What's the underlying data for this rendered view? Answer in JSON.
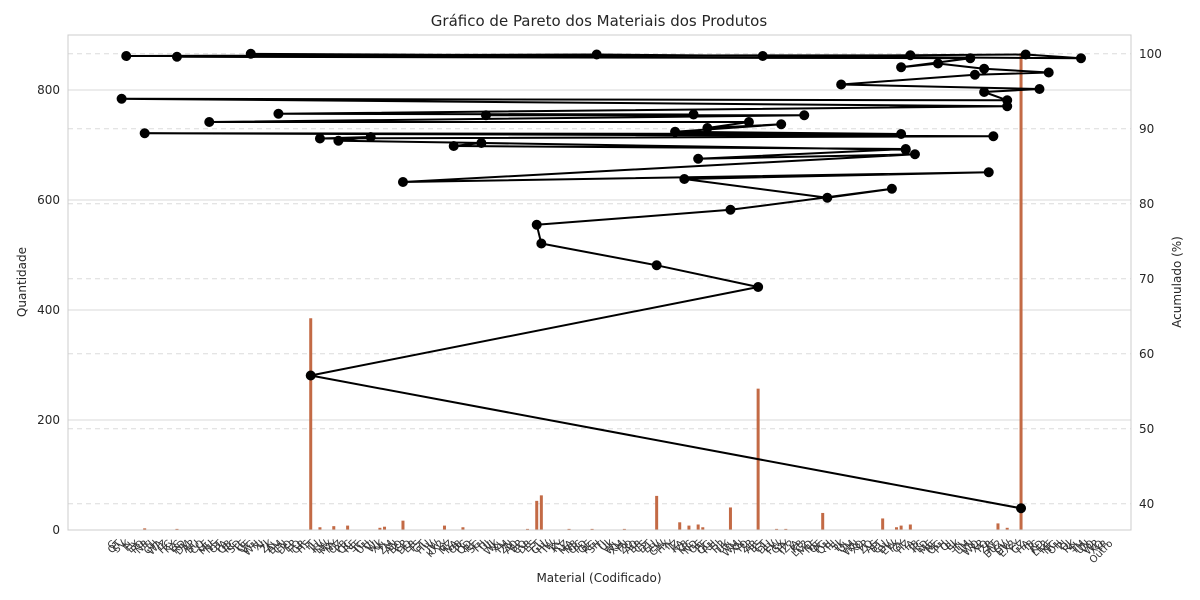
{
  "chart_data": {
    "type": "bar",
    "title": "Gráfico de Pareto dos Materiais dos Produtos",
    "xlabel": "Material (Codificado)",
    "ylabel": "Quantidade",
    "y2label": "Acumulado (%)",
    "ylim": [
      0,
      900
    ],
    "y2lim": [
      36.5,
      102.5
    ],
    "yticks": [
      0,
      200,
      400,
      600,
      800
    ],
    "y2ticks": [
      40,
      50,
      60,
      70,
      80,
      90,
      100
    ],
    "grid": true,
    "n_categories": 210,
    "bar_color": "#c36a45",
    "line_color": "#000000",
    "bars": [
      {
        "i": 6,
        "v": 3
      },
      {
        "i": 13,
        "v": 2
      },
      {
        "i": 42,
        "v": 385
      },
      {
        "i": 44,
        "v": 5
      },
      {
        "i": 47,
        "v": 7
      },
      {
        "i": 50,
        "v": 8
      },
      {
        "i": 57,
        "v": 4
      },
      {
        "i": 58,
        "v": 6
      },
      {
        "i": 62,
        "v": 17
      },
      {
        "i": 71,
        "v": 8
      },
      {
        "i": 75,
        "v": 5
      },
      {
        "i": 89,
        "v": 2
      },
      {
        "i": 91,
        "v": 53
      },
      {
        "i": 92,
        "v": 63
      },
      {
        "i": 98,
        "v": 2
      },
      {
        "i": 103,
        "v": 2
      },
      {
        "i": 110,
        "v": 2
      },
      {
        "i": 117,
        "v": 62
      },
      {
        "i": 122,
        "v": 14
      },
      {
        "i": 124,
        "v": 8
      },
      {
        "i": 126,
        "v": 10
      },
      {
        "i": 127,
        "v": 5
      },
      {
        "i": 133,
        "v": 41
      },
      {
        "i": 139,
        "v": 257
      },
      {
        "i": 143,
        "v": 2
      },
      {
        "i": 145,
        "v": 2
      },
      {
        "i": 153,
        "v": 31
      },
      {
        "i": 166,
        "v": 21
      },
      {
        "i": 169,
        "v": 5
      },
      {
        "i": 170,
        "v": 8
      },
      {
        "i": 172,
        "v": 10
      },
      {
        "i": 191,
        "v": 12
      },
      {
        "i": 193,
        "v": 4
      },
      {
        "i": 196,
        "v": 867
      }
    ],
    "cumulative_points": [
      {
        "i": 196,
        "pct": 39.4
      },
      {
        "i": 42,
        "pct": 57.1
      },
      {
        "i": 139,
        "pct": 68.9
      },
      {
        "i": 117,
        "pct": 71.8
      },
      {
        "i": 92,
        "pct": 74.7
      },
      {
        "i": 91,
        "pct": 77.2
      },
      {
        "i": 133,
        "pct": 79.2
      },
      {
        "i": 168,
        "pct": 82.0
      },
      {
        "i": 154,
        "pct": 80.8
      },
      {
        "i": 123,
        "pct": 83.3
      },
      {
        "i": 189,
        "pct": 84.2
      },
      {
        "i": 62,
        "pct": 82.9
      },
      {
        "i": 173,
        "pct": 86.6
      },
      {
        "i": 126,
        "pct": 86.0
      },
      {
        "i": 171,
        "pct": 87.3
      },
      {
        "i": 73,
        "pct": 87.7
      },
      {
        "i": 79,
        "pct": 88.1
      },
      {
        "i": 171,
        "pct": 87.2
      },
      {
        "i": 48,
        "pct": 88.4
      },
      {
        "i": 55,
        "pct": 88.9
      },
      {
        "i": 44,
        "pct": 88.7
      },
      {
        "i": 190,
        "pct": 89.0
      },
      {
        "i": 6,
        "pct": 89.4
      },
      {
        "i": 170,
        "pct": 89.3
      },
      {
        "i": 121,
        "pct": 89.6
      },
      {
        "i": 144,
        "pct": 90.6
      },
      {
        "i": 128,
        "pct": 90.1
      },
      {
        "i": 137,
        "pct": 90.9
      },
      {
        "i": 20,
        "pct": 90.9
      },
      {
        "i": 149,
        "pct": 91.8
      },
      {
        "i": 80,
        "pct": 91.8
      },
      {
        "i": 125,
        "pct": 91.9
      },
      {
        "i": 35,
        "pct": 92.0
      },
      {
        "i": 193,
        "pct": 93.0
      },
      {
        "i": 1,
        "pct": 94.0
      },
      {
        "i": 193,
        "pct": 93.8
      },
      {
        "i": 188,
        "pct": 94.9
      },
      {
        "i": 200,
        "pct": 95.3
      },
      {
        "i": 157,
        "pct": 95.9
      },
      {
        "i": 186,
        "pct": 97.2
      },
      {
        "i": 202,
        "pct": 97.5
      },
      {
        "i": 188,
        "pct": 98.0
      },
      {
        "i": 178,
        "pct": 98.7
      },
      {
        "i": 170,
        "pct": 98.2
      },
      {
        "i": 185,
        "pct": 99.4
      },
      {
        "i": 13,
        "pct": 99.6
      },
      {
        "i": 140,
        "pct": 99.7
      },
      {
        "i": 104,
        "pct": 99.9
      },
      {
        "i": 2,
        "pct": 99.7
      },
      {
        "i": 172,
        "pct": 99.8
      },
      {
        "i": 197,
        "pct": 99.9
      },
      {
        "i": 209,
        "pct": 99.4
      },
      {
        "i": 29,
        "pct": 100.0
      }
    ],
    "xtick_labels": [
      "G",
      "QT",
      "SV",
      "K",
      "FL",
      "EX",
      "PO",
      "NR",
      "TJ",
      "GH",
      "WA",
      "IZ",
      "HC",
      "KX",
      "LC",
      "RD",
      "DM",
      "AP",
      "BU",
      "CO",
      "LE",
      "MU",
      "NS",
      "OT",
      "PA",
      "QB",
      "RC",
      "SD",
      "TE",
      "UF",
      "VG",
      "WH",
      "XI",
      "YJ",
      "ZK",
      "AL",
      "BM",
      "CN",
      "DO",
      "EP",
      "FQ",
      "GR",
      "HS",
      "IT",
      "JU",
      "KV",
      "LW",
      "MX",
      "NY",
      "OZ",
      "PB",
      "QC",
      "RE",
      "SF",
      "TG",
      "UH",
      "VI",
      "WJ",
      "XK",
      "YL",
      "ZM",
      "AN",
      "BO",
      "CP",
      "DQ",
      "ER",
      "FS",
      "GT",
      "HU",
      "IV",
      "JW",
      "KX2",
      "LY",
      "MZ",
      "NA",
      "OB",
      "PC",
      "QD",
      "RF",
      "SG",
      "TH",
      "UI",
      "VJ",
      "WK",
      "XL",
      "YM",
      "ZN",
      "AO",
      "BP",
      "CQ",
      "DR",
      "ES",
      "FT",
      "GU",
      "HV",
      "IW",
      "JX",
      "KY",
      "LZ",
      "MA",
      "NB",
      "OC",
      "PD",
      "QE",
      "RG",
      "SH",
      "TI",
      "UJ",
      "VK",
      "WL",
      "XM",
      "YN",
      "ZO",
      "AQ",
      "BR",
      "CS",
      "DT",
      "EU",
      "FV",
      "GW",
      "HX",
      "IY",
      "JZ",
      "KA",
      "LB",
      "MC",
      "ND",
      "OE",
      "PF",
      "QG",
      "RH",
      "SI",
      "TJ2",
      "UK",
      "VL",
      "WM",
      "XN",
      "YO",
      "ZP",
      "AR",
      "BS",
      "CT",
      "DU",
      "EV",
      "FW",
      "GX",
      "HY",
      "IZ2",
      "JA",
      "KB",
      "LC2",
      "MD",
      "NE",
      "OF",
      "PG",
      "QH",
      "RI",
      "SJ",
      "TK",
      "UL",
      "VM",
      "WN",
      "XO",
      "YP",
      "ZQ",
      "AS",
      "BT",
      "CU",
      "DV",
      "EW",
      "FX",
      "GY",
      "HZ",
      "IA",
      "JB",
      "KC",
      "LD",
      "ME",
      "NF",
      "OG",
      "PH",
      "QI",
      "RJ",
      "SK",
      "TL",
      "UM",
      "VN",
      "WO",
      "XP",
      "YQ",
      "ZR",
      "AT",
      "BU2",
      "CV",
      "DW",
      "EX2",
      "FY",
      "GZ",
      "HA",
      "IB",
      "JC",
      "KD",
      "LE2",
      "MF",
      "NG",
      "OH",
      "PI",
      "QJ",
      "RK",
      "SL",
      "TM",
      "UN",
      "VO",
      "WP",
      "XQ",
      "YR",
      "Outro"
    ]
  }
}
